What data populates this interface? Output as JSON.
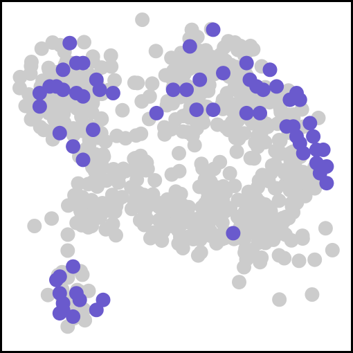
{
  "colors": {
    "background_points": "#cccccc",
    "highlight_points": "#6a5acd",
    "frame": "#000000",
    "canvas": "#ffffff"
  },
  "chart_data": {
    "type": "scatter",
    "title": "",
    "xlabel": "",
    "ylabel": "",
    "xlim": [
      0,
      100
    ],
    "ylim": [
      0,
      100
    ],
    "grid": false,
    "axes_visible": false,
    "legend": "none",
    "background_clusters": [
      {
        "cx": 17,
        "cy": 21,
        "rx": 12,
        "ry": 11,
        "n": 85
      },
      {
        "cx": 9,
        "cy": 27,
        "rx": 4,
        "ry": 6,
        "n": 18
      },
      {
        "cx": 21,
        "cy": 34,
        "rx": 10,
        "ry": 7,
        "n": 35
      },
      {
        "cx": 32,
        "cy": 50,
        "rx": 12,
        "ry": 12,
        "n": 70
      },
      {
        "cx": 25,
        "cy": 60,
        "rx": 8,
        "ry": 6,
        "n": 28
      },
      {
        "cx": 56,
        "cy": 17,
        "rx": 15,
        "ry": 11,
        "n": 85
      },
      {
        "cx": 52,
        "cy": 34,
        "rx": 7,
        "ry": 8,
        "n": 30
      },
      {
        "cx": 74,
        "cy": 31,
        "rx": 12,
        "ry": 13,
        "n": 70
      },
      {
        "cx": 86,
        "cy": 48,
        "rx": 7,
        "ry": 12,
        "n": 45
      },
      {
        "cx": 58,
        "cy": 60,
        "rx": 14,
        "ry": 13,
        "n": 95
      },
      {
        "cx": 76,
        "cy": 66,
        "rx": 12,
        "ry": 12,
        "n": 90
      },
      {
        "cx": 44,
        "cy": 64,
        "rx": 6,
        "ry": 5,
        "n": 18
      },
      {
        "cx": 18,
        "cy": 85,
        "rx": 5,
        "ry": 8,
        "n": 24
      }
    ],
    "series": [
      {
        "values": [
          {
            "x": 18,
            "y": 10
          },
          {
            "x": 20,
            "y": 16
          },
          {
            "x": 22,
            "y": 16
          },
          {
            "x": 16,
            "y": 18
          },
          {
            "x": 12,
            "y": 23
          },
          {
            "x": 16,
            "y": 24
          },
          {
            "x": 20,
            "y": 25
          },
          {
            "x": 22,
            "y": 26
          },
          {
            "x": 26,
            "y": 21
          },
          {
            "x": 27,
            "y": 24
          },
          {
            "x": 31,
            "y": 25
          },
          {
            "x": 9,
            "y": 25
          },
          {
            "x": 9,
            "y": 29
          },
          {
            "x": 14,
            "y": 23
          },
          {
            "x": 15,
            "y": 37
          },
          {
            "x": 19,
            "y": 41
          },
          {
            "x": 25,
            "y": 36
          },
          {
            "x": 22,
            "y": 45
          },
          {
            "x": 61,
            "y": 6
          },
          {
            "x": 54,
            "y": 11
          },
          {
            "x": 64,
            "y": 19
          },
          {
            "x": 57,
            "y": 21
          },
          {
            "x": 49,
            "y": 24
          },
          {
            "x": 53,
            "y": 24
          },
          {
            "x": 44,
            "y": 31
          },
          {
            "x": 56,
            "y": 30
          },
          {
            "x": 61,
            "y": 30
          },
          {
            "x": 71,
            "y": 16
          },
          {
            "x": 72,
            "y": 21
          },
          {
            "x": 74,
            "y": 23
          },
          {
            "x": 76,
            "y": 24
          },
          {
            "x": 78,
            "y": 18
          },
          {
            "x": 80,
            "y": 23
          },
          {
            "x": 71,
            "y": 31
          },
          {
            "x": 75,
            "y": 31
          },
          {
            "x": 86,
            "y": 25
          },
          {
            "x": 84,
            "y": 27
          },
          {
            "x": 87,
            "y": 27
          },
          {
            "x": 83,
            "y": 35
          },
          {
            "x": 85,
            "y": 35
          },
          {
            "x": 90,
            "y": 34
          },
          {
            "x": 86,
            "y": 38
          },
          {
            "x": 87,
            "y": 40
          },
          {
            "x": 91,
            "y": 38
          },
          {
            "x": 88,
            "y": 43
          },
          {
            "x": 92,
            "y": 42
          },
          {
            "x": 94,
            "y": 42
          },
          {
            "x": 92,
            "y": 46
          },
          {
            "x": 95,
            "y": 47
          },
          {
            "x": 93,
            "y": 49
          },
          {
            "x": 95,
            "y": 52
          },
          {
            "x": 67,
            "y": 67
          },
          {
            "x": 19,
            "y": 77
          },
          {
            "x": 15,
            "y": 80
          },
          {
            "x": 14,
            "y": 81
          },
          {
            "x": 15,
            "y": 85
          },
          {
            "x": 20,
            "y": 85
          },
          {
            "x": 21,
            "y": 87
          },
          {
            "x": 16,
            "y": 88
          },
          {
            "x": 16,
            "y": 90
          },
          {
            "x": 19,
            "y": 92
          },
          {
            "x": 26,
            "y": 90
          },
          {
            "x": 28,
            "y": 87
          },
          {
            "x": 15,
            "y": 91
          }
        ]
      }
    ]
  }
}
